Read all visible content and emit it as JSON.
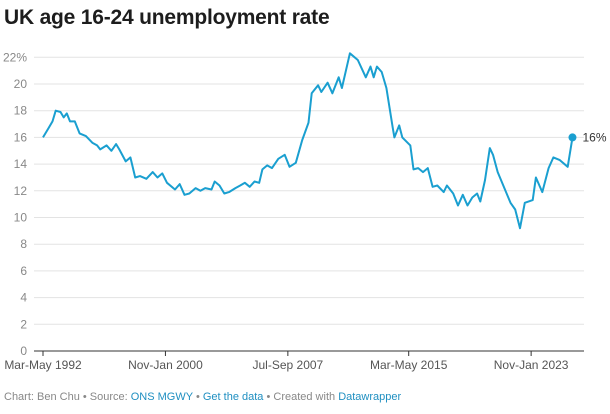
{
  "chart_data": {
    "type": "line",
    "title": "UK age 16-24 unemployment rate",
    "xlabel": "",
    "ylabel": "",
    "ylim": [
      0,
      22
    ],
    "yticks": [
      0,
      2,
      4,
      6,
      8,
      10,
      12,
      14,
      16,
      18,
      20,
      22
    ],
    "ytick_labels": [
      "0",
      "2",
      "4",
      "6",
      "8",
      "10",
      "12",
      "14",
      "16",
      "18",
      "20",
      "22%"
    ],
    "xticks": [
      {
        "label": "Mar-May 1992",
        "x": 1992.2
      },
      {
        "label": "Nov-Jan 2000",
        "x": 1999.9
      },
      {
        "label": "Jul-Sep 2007",
        "x": 2007.6
      },
      {
        "label": "Mar-May 2015",
        "x": 2015.2
      },
      {
        "label": "Nov-Jan 2023",
        "x": 2022.9
      }
    ],
    "grid": true,
    "line_color": "#1a9fd0",
    "end_label": "16%",
    "series": [
      {
        "name": "16-24 unemployment rate",
        "x": [
          1992.2,
          1992.5,
          1992.8,
          1993.0,
          1993.3,
          1993.5,
          1993.7,
          1993.9,
          1994.2,
          1994.5,
          1994.9,
          1995.3,
          1995.6,
          1995.8,
          1996.2,
          1996.5,
          1996.8,
          1997.0,
          1997.4,
          1997.7,
          1998.0,
          1998.3,
          1998.7,
          1999.1,
          1999.4,
          1999.7,
          2000.0,
          2000.5,
          2000.8,
          2001.1,
          2001.4,
          2001.8,
          2002.1,
          2002.4,
          2002.8,
          2003.0,
          2003.3,
          2003.6,
          2003.9,
          2004.3,
          2004.6,
          2004.9,
          2005.2,
          2005.5,
          2005.8,
          2006.0,
          2006.3,
          2006.6,
          2007.0,
          2007.4,
          2007.7,
          2008.1,
          2008.5,
          2008.9,
          2009.1,
          2009.5,
          2009.7,
          2010.1,
          2010.4,
          2010.8,
          2011.0,
          2011.5,
          2012.0,
          2012.5,
          2012.8,
          2013.0,
          2013.2,
          2013.5,
          2013.8,
          2014.2,
          2014.3,
          2014.6,
          2014.8,
          2015.3,
          2015.5,
          2015.8,
          2016.1,
          2016.4,
          2016.7,
          2017.0,
          2017.4,
          2017.6,
          2018.0,
          2018.3,
          2018.6,
          2018.9,
          2019.2,
          2019.5,
          2019.7,
          2020.0,
          2020.3,
          2020.5,
          2020.8,
          2021.6,
          2021.9,
          2022.2,
          2022.5,
          2023.0,
          2023.2,
          2023.6,
          2024.0,
          2024.3,
          2024.7,
          2025.2,
          2025.5
        ],
        "values": [
          16.0,
          16.6,
          17.2,
          18.0,
          17.9,
          17.5,
          17.8,
          17.2,
          17.2,
          16.3,
          16.1,
          15.6,
          15.4,
          15.1,
          15.4,
          15.0,
          15.5,
          15.1,
          14.2,
          14.5,
          13.0,
          13.1,
          12.9,
          13.4,
          13.0,
          13.3,
          12.6,
          12.1,
          12.5,
          11.7,
          11.8,
          12.2,
          12.0,
          12.2,
          12.1,
          12.7,
          12.4,
          11.8,
          11.9,
          12.2,
          12.4,
          12.6,
          12.3,
          12.7,
          12.6,
          13.6,
          13.9,
          13.7,
          14.4,
          14.7,
          13.8,
          14.1,
          15.8,
          17.1,
          19.3,
          19.9,
          19.4,
          20.1,
          19.3,
          20.5,
          19.7,
          22.3,
          21.8,
          20.5,
          21.3,
          20.5,
          21.3,
          20.9,
          19.7,
          16.7,
          16.0,
          16.9,
          16.0,
          15.4,
          13.6,
          13.7,
          13.4,
          13.7,
          12.3,
          12.4,
          11.9,
          12.4,
          11.8,
          10.9,
          11.7,
          10.9,
          11.5,
          11.8,
          11.2,
          12.8,
          15.2,
          14.7,
          13.4,
          11.1,
          10.6,
          9.2,
          11.1,
          11.3,
          13.0,
          11.9,
          13.7,
          14.5,
          14.3,
          13.8,
          16.0
        ]
      }
    ]
  },
  "footer": {
    "chart_prefix": "Chart: Ben Chu • Source: ",
    "source_link": "ONS MGWY",
    "sep1": " • ",
    "get_data": "Get the data",
    "created_prefix": " • Created with ",
    "datawrapper": "Datawrapper"
  }
}
